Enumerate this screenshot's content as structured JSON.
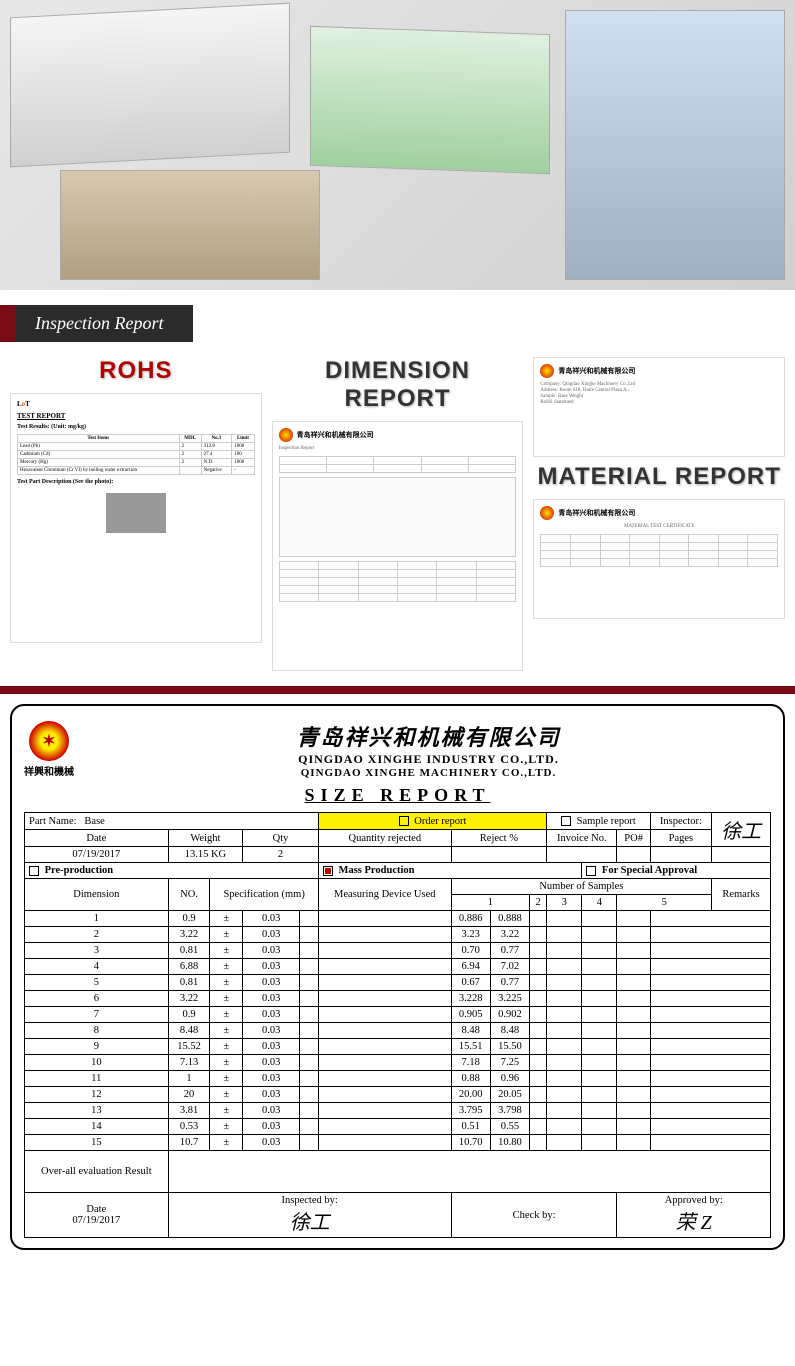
{
  "banner": {
    "title": "Inspection Report"
  },
  "reportTitles": {
    "rohs": "ROHS",
    "dimension": "DIMENSION REPORT",
    "material": "MATERIAL REPORT"
  },
  "rohs": {
    "testReportLabel": "TEST REPORT",
    "resultsLabel": "Test Results: (Unit: mg/kg)",
    "headers": [
      "Test Items",
      "MDL",
      "No.1",
      "Limit"
    ],
    "rows": [
      [
        "Lead (Pb)",
        "2",
        "312.8",
        "1000"
      ],
      [
        "Cadmium (Cd)",
        "2",
        "27.4",
        "100"
      ],
      [
        "Mercury (Hg)",
        "2",
        "N.D.",
        "1000"
      ],
      [
        "Hexavalent Chromium (Cr VI) by boiling water extraction",
        "",
        "Negative",
        "-"
      ]
    ],
    "partDescLabel": "Test Part Description (See the photo):"
  },
  "company": {
    "cn": "青岛祥兴和机械有限公司",
    "en1": "QINGDAO XINGHE INDUSTRY CO.,LTD.",
    "en2": "QINGDAO XINGHE MACHINERY CO.,LTD.",
    "logoText": "祥興和機械"
  },
  "sizeReport": {
    "title": "SIZE    REPORT",
    "labels": {
      "partName": "Part Name:",
      "orderReport": "Order report",
      "sampleReport": "Sample report",
      "inspector": "Inspector:",
      "date": "Date",
      "weight": "Weight",
      "qty": "Qty",
      "qtyRejected": "Quantity rejected",
      "rejectPct": "Reject %",
      "invoiceNo": "Invoice No.",
      "po": "PO#",
      "pages": "Pages",
      "preProduction": "Pre-production",
      "massProduction": "Mass Production",
      "forSpecial": "For Special Approval",
      "no": "NO.",
      "spec": "Specification (mm)",
      "measuring": "Measuring Device Used",
      "numSamples": "Number of Samples",
      "remarks": "Remarks",
      "dimension": "Dimension",
      "overall": "Over-all evaluation Result",
      "inspectedBy": "Inspected by:",
      "checkBy": "Check by:",
      "approvedBy": "Approved by:"
    },
    "values": {
      "partName": "Base",
      "date": "07/19/2017",
      "weight": "13.15 KG",
      "qty": "2",
      "inspectorSig": "徐工",
      "approvedSig": "荣 Z",
      "footerDate": "07/19/2017"
    },
    "sampleCols": [
      "1",
      "2",
      "3",
      "4",
      "5"
    ],
    "rows": [
      {
        "no": "1",
        "spec": "0.9",
        "tol": "0.03",
        "s1": "0.886",
        "s2": "0.888"
      },
      {
        "no": "2",
        "spec": "3.22",
        "tol": "0.03",
        "s1": "3.23",
        "s2": "3.22"
      },
      {
        "no": "3",
        "spec": "0.81",
        "tol": "0.03",
        "s1": "0.70",
        "s2": "0.77"
      },
      {
        "no": "4",
        "spec": "6.88",
        "tol": "0.03",
        "s1": "6.94",
        "s2": "7.02"
      },
      {
        "no": "5",
        "spec": "0.81",
        "tol": "0.03",
        "s1": "0.67",
        "s2": "0.77"
      },
      {
        "no": "6",
        "spec": "3.22",
        "tol": "0.03",
        "s1": "3.228",
        "s2": "3.225"
      },
      {
        "no": "7",
        "spec": "0.9",
        "tol": "0.03",
        "s1": "0.905",
        "s2": "0.902"
      },
      {
        "no": "8",
        "spec": "8.48",
        "tol": "0.03",
        "s1": "8.48",
        "s2": "8.48"
      },
      {
        "no": "9",
        "spec": "15.52",
        "tol": "0.03",
        "s1": "15.51",
        "s2": "15.50"
      },
      {
        "no": "10",
        "spec": "7.13",
        "tol": "0.03",
        "s1": "7.18",
        "s2": "7.25"
      },
      {
        "no": "11",
        "spec": "1",
        "tol": "0.03",
        "s1": "0.88",
        "s2": "0.96"
      },
      {
        "no": "12",
        "spec": "20",
        "tol": "0.03",
        "s1": "20.00",
        "s2": "20.05"
      },
      {
        "no": "13",
        "spec": "3.81",
        "tol": "0.03",
        "s1": "3.795",
        "s2": "3.798"
      },
      {
        "no": "14",
        "spec": "0.53",
        "tol": "0.03",
        "s1": "0.51",
        "s2": "0.55"
      },
      {
        "no": "15",
        "spec": "10.7",
        "tol": "0.03",
        "s1": "10.70",
        "s2": "10.80"
      }
    ]
  }
}
